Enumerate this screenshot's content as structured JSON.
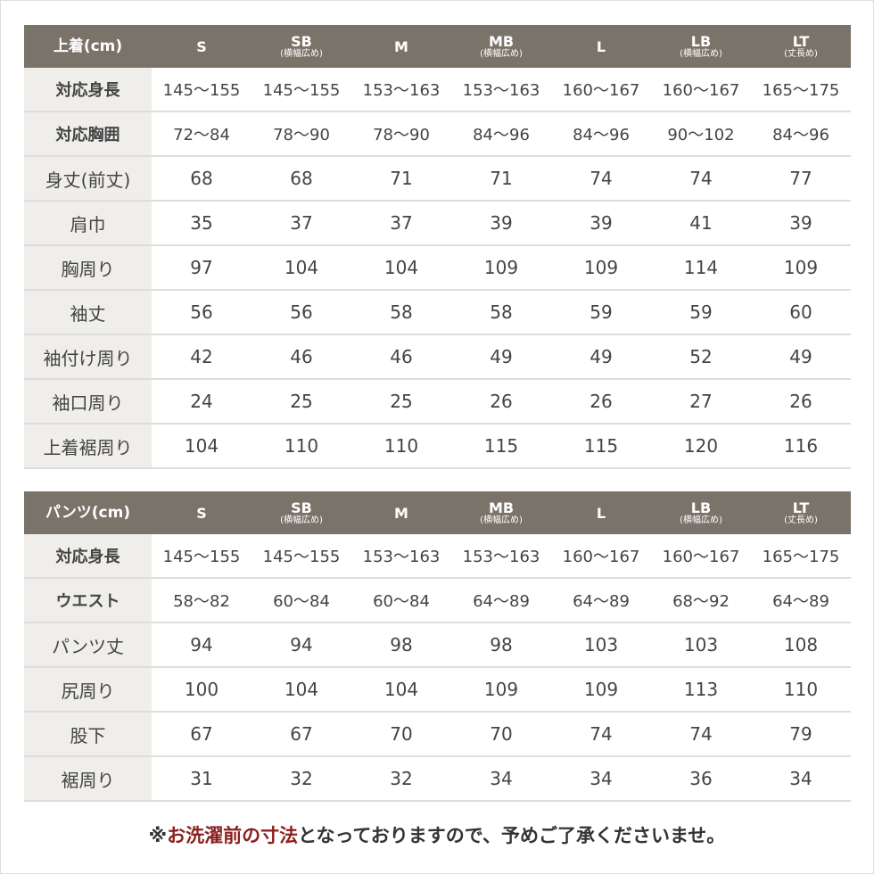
{
  "tables": [
    {
      "header": {
        "label": "上着(cm)",
        "sizes": [
          {
            "size": "S"
          },
          {
            "size": "SB",
            "note": "(横幅広め)"
          },
          {
            "size": "M"
          },
          {
            "size": "MB",
            "note": "(横幅広め)"
          },
          {
            "size": "L"
          },
          {
            "size": "LB",
            "note": "(横幅広め)"
          },
          {
            "size": "LT",
            "note": "(丈長め)"
          }
        ]
      },
      "rows": [
        {
          "label": "対応身長",
          "values": [
            "145〜155",
            "145〜155",
            "153〜163",
            "153〜163",
            "160〜167",
            "160〜167",
            "165〜175"
          ]
        },
        {
          "label": "対応胸囲",
          "values": [
            "72〜84",
            "78〜90",
            "78〜90",
            "84〜96",
            "84〜96",
            "90〜102",
            "84〜96"
          ]
        },
        {
          "label": "身丈(前丈)",
          "values": [
            68,
            68,
            71,
            71,
            74,
            74,
            77
          ]
        },
        {
          "label": "肩巾",
          "values": [
            35,
            37,
            37,
            39,
            39,
            41,
            39
          ]
        },
        {
          "label": "胸周り",
          "values": [
            97,
            104,
            104,
            109,
            109,
            114,
            109
          ]
        },
        {
          "label": "袖丈",
          "values": [
            56,
            56,
            58,
            58,
            59,
            59,
            60
          ]
        },
        {
          "label": "袖付け周り",
          "values": [
            42,
            46,
            46,
            49,
            49,
            52,
            49
          ]
        },
        {
          "label": "袖口周り",
          "values": [
            24,
            25,
            25,
            26,
            26,
            27,
            26
          ]
        },
        {
          "label": "上着裾周り",
          "values": [
            104,
            110,
            110,
            115,
            115,
            120,
            116
          ]
        }
      ]
    },
    {
      "header": {
        "label": "パンツ(cm)",
        "sizes": [
          {
            "size": "S"
          },
          {
            "size": "SB",
            "note": "(横幅広め)"
          },
          {
            "size": "M"
          },
          {
            "size": "MB",
            "note": "(横幅広め)"
          },
          {
            "size": "L"
          },
          {
            "size": "LB",
            "note": "(横幅広め)"
          },
          {
            "size": "LT",
            "note": "(丈長め)"
          }
        ]
      },
      "rows": [
        {
          "label": "対応身長",
          "values": [
            "145〜155",
            "145〜155",
            "153〜163",
            "153〜163",
            "160〜167",
            "160〜167",
            "165〜175"
          ]
        },
        {
          "label": "ウエスト",
          "values": [
            "58〜82",
            "60〜84",
            "60〜84",
            "64〜89",
            "64〜89",
            "68〜92",
            "64〜89"
          ]
        },
        {
          "label": "パンツ丈",
          "values": [
            94,
            94,
            98,
            98,
            103,
            103,
            108
          ]
        },
        {
          "label": "尻周り",
          "values": [
            100,
            104,
            104,
            109,
            109,
            113,
            110
          ]
        },
        {
          "label": "股下",
          "values": [
            67,
            67,
            70,
            70,
            74,
            74,
            79
          ]
        },
        {
          "label": "裾周り",
          "values": [
            31,
            32,
            32,
            34,
            34,
            36,
            34
          ]
        }
      ]
    }
  ],
  "footnote": {
    "mark": "※",
    "highlight": "お洗濯前の寸法",
    "text": "となっておりますので、予めご了承くださいませ。"
  }
}
